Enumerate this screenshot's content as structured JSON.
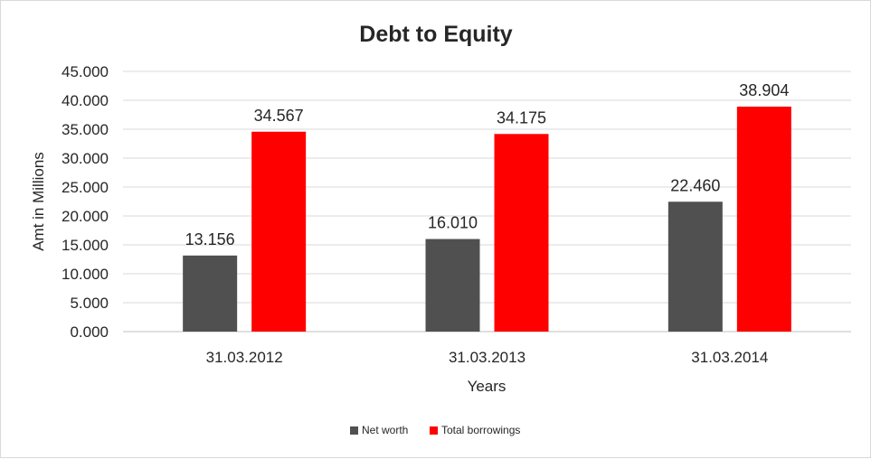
{
  "chart_data": {
    "type": "bar",
    "title": "Debt to Equity",
    "xlabel": "Years",
    "ylabel": "Amt in Millions",
    "categories": [
      "31.03.2012",
      "31.03.2013",
      "31.03.2014"
    ],
    "series": [
      {
        "name": "Net worth",
        "values": [
          13.156,
          16.01,
          22.46
        ],
        "color": "#505050"
      },
      {
        "name": "Total borrowings",
        "values": [
          34.567,
          34.175,
          38.904
        ],
        "color": "#ff0000"
      }
    ],
    "data_labels": [
      [
        "13.156",
        "16.010",
        "22.460"
      ],
      [
        "34.567",
        "34.175",
        "38.904"
      ]
    ],
    "ylim": [
      0,
      45
    ],
    "yticks": [
      "0.000",
      "5.000",
      "10.000",
      "15.000",
      "20.000",
      "25.000",
      "30.000",
      "35.000",
      "40.000",
      "45.000"
    ],
    "grid": true,
    "legend_position": "bottom"
  }
}
